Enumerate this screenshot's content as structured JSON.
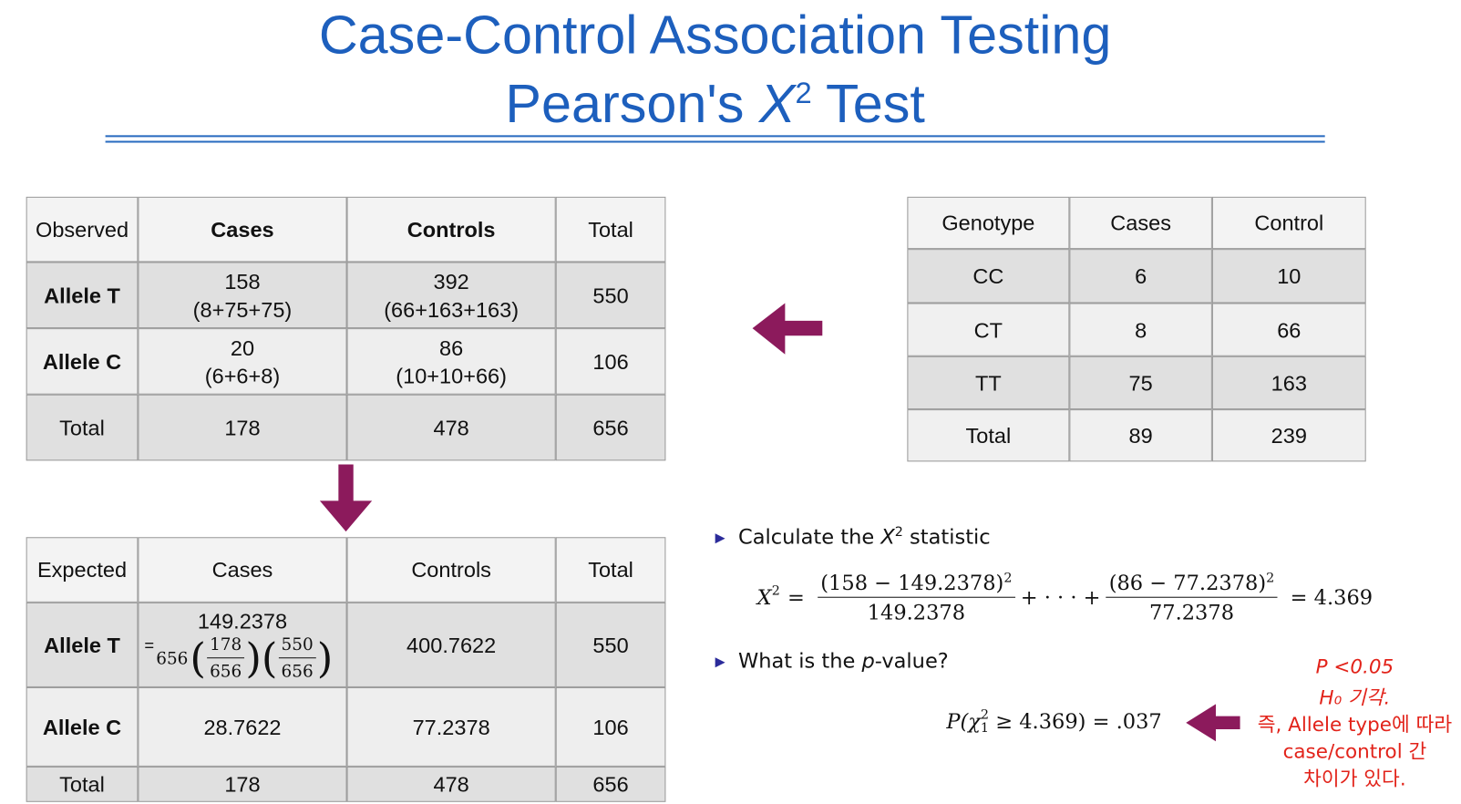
{
  "header": {
    "title": "Case-Control Association Testing",
    "subtitle": {
      "prefix": "Pearson's ",
      "symbol": "X",
      "superscript": "2",
      "suffix": " Test"
    }
  },
  "observed": {
    "header": [
      "Observed",
      "Cases",
      "Controls",
      "Total"
    ],
    "rows": [
      [
        "Allele T",
        [
          "158",
          "(8+75+75)"
        ],
        [
          "392",
          "(66+163+163)"
        ],
        "550"
      ],
      [
        "Allele C",
        [
          "20",
          "(6+6+8)"
        ],
        [
          "86",
          "(10+10+66)"
        ],
        "106"
      ],
      [
        "Total",
        "178",
        "478",
        "656"
      ]
    ]
  },
  "genotype": {
    "header": [
      "Genotype",
      "Cases",
      "Control"
    ],
    "rows": [
      [
        "CC",
        "6",
        "10"
      ],
      [
        "CT",
        "8",
        "66"
      ],
      [
        "TT",
        "75",
        "163"
      ],
      [
        "Total",
        "89",
        "239"
      ]
    ]
  },
  "expected": {
    "header": [
      "Expected",
      "Cases",
      "Controls",
      "Total"
    ],
    "rows": [
      [
        "Allele T",
        {
          "value": "149.2378",
          "eq": "=",
          "n": "656",
          "num1": "178",
          "den1": "656",
          "num2": "550",
          "den2": "656"
        },
        "400.7622",
        "550"
      ],
      [
        "Allele C",
        "28.7622",
        "77.2378",
        "106"
      ],
      [
        "Total",
        "178",
        "478",
        "656"
      ]
    ]
  },
  "bullets": [
    {
      "before": "Calculate the ",
      "symbol": "X",
      "sup": "2",
      "after": " statistic"
    },
    {
      "before": "What is the ",
      "symbol": "p",
      "after": "-value?"
    }
  ],
  "statistic": {
    "lhs": "X",
    "lhs_sup": "2",
    "eq": "=",
    "num1": "(158 − 149.2378)",
    "sup1": "2",
    "den1": "149.2378",
    "plus": "+ · · · +",
    "num2": "(86 − 77.2378)",
    "sup2": "2",
    "den2": "77.2378",
    "result": "= 4.369"
  },
  "pvalue": {
    "open": "P(",
    "chi": "χ",
    "sup": "2",
    "sub": "1",
    "rest": " ≥ 4.369) = .037"
  },
  "note": [
    "P <0.05",
    "H₀ 기각.",
    "즉, Allele type에 따라",
    "case/control 간",
    "차이가 있다."
  ]
}
